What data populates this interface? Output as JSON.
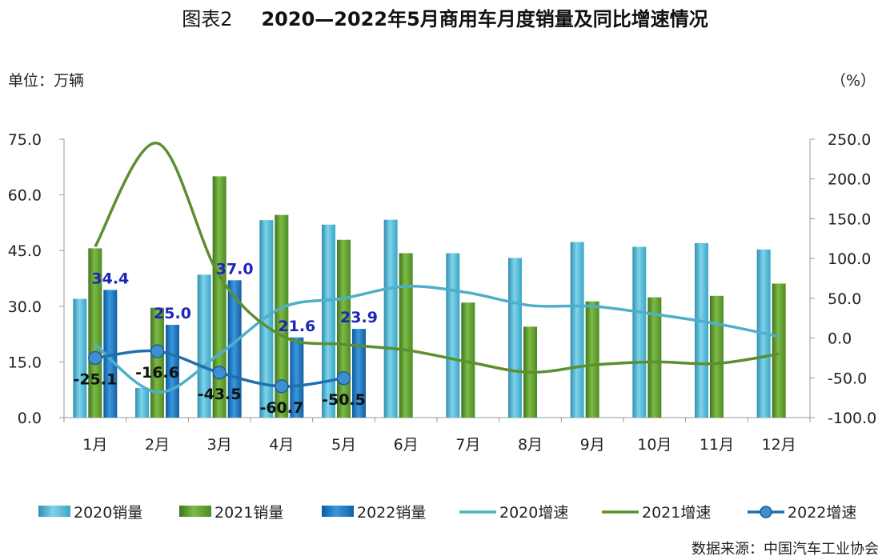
{
  "figure_label": "图表2",
  "title": "2020—2022年5月商用车月度销量及同比增速情况",
  "left_unit": "单位：万辆",
  "right_unit": "（%）",
  "source": "数据来源：中国汽车工业协会",
  "colors": {
    "bar2020": "#4bb8d4",
    "bar2021": "#5e9e2e",
    "bar2022": "#1b78c2",
    "line2020": "#4fafc9",
    "line2021": "#5c8f2e",
    "line2022": "#1f6fad",
    "label2022": "#1f26b5"
  },
  "chart_data": {
    "type": "bar",
    "categories": [
      "1月",
      "2月",
      "3月",
      "4月",
      "5月",
      "6月",
      "7月",
      "8月",
      "9月",
      "10月",
      "11月",
      "12月"
    ],
    "ylim": [
      0,
      75
    ],
    "yticks": [
      "0.0",
      "15.0",
      "30.0",
      "45.0",
      "60.0",
      "75.0"
    ],
    "y2lim": [
      -100,
      250
    ],
    "y2ticks": [
      "-100.0",
      "-50.0",
      "0.0",
      "50.0",
      "100.0",
      "150.0",
      "200.0",
      "250.0"
    ],
    "bar_series": [
      {
        "name": "2020销量",
        "values": [
          32.0,
          8.0,
          38.5,
          53.2,
          52.0,
          53.3,
          44.3,
          43.0,
          47.3,
          46.0,
          47.0,
          45.3
        ]
      },
      {
        "name": "2021销量",
        "values": [
          45.6,
          29.6,
          65.0,
          54.6,
          47.9,
          44.3,
          31.0,
          24.5,
          31.3,
          32.4,
          32.8,
          36.1
        ]
      },
      {
        "name": "2022销量",
        "values": [
          34.4,
          25.0,
          37.0,
          21.6,
          23.9
        ]
      }
    ],
    "bar_labels_2022": [
      "34.4",
      "25.0",
      "37.0",
      "21.6",
      "23.9"
    ],
    "line_series": [
      {
        "name": "2020增速",
        "values": [
          -8,
          -68,
          -20,
          38,
          50,
          65,
          57,
          41,
          40,
          30,
          18,
          2
        ]
      },
      {
        "name": "2021增速",
        "values": [
          115,
          245,
          78,
          3,
          -8,
          -15,
          -30,
          -43,
          -34,
          -30,
          -32,
          -20
        ]
      },
      {
        "name": "2022增速",
        "values": [
          -25.1,
          -16.6,
          -43.5,
          -60.7,
          -50.5
        ]
      }
    ],
    "line_labels_2022": [
      "-25.1",
      "-16.6",
      "-43.5",
      "-60.7",
      "-50.5"
    ],
    "legend": [
      "2020销量",
      "2021销量",
      "2022销量",
      "2020增速",
      "2021增速",
      "2022增速"
    ],
    "legend_position": "bottom"
  }
}
